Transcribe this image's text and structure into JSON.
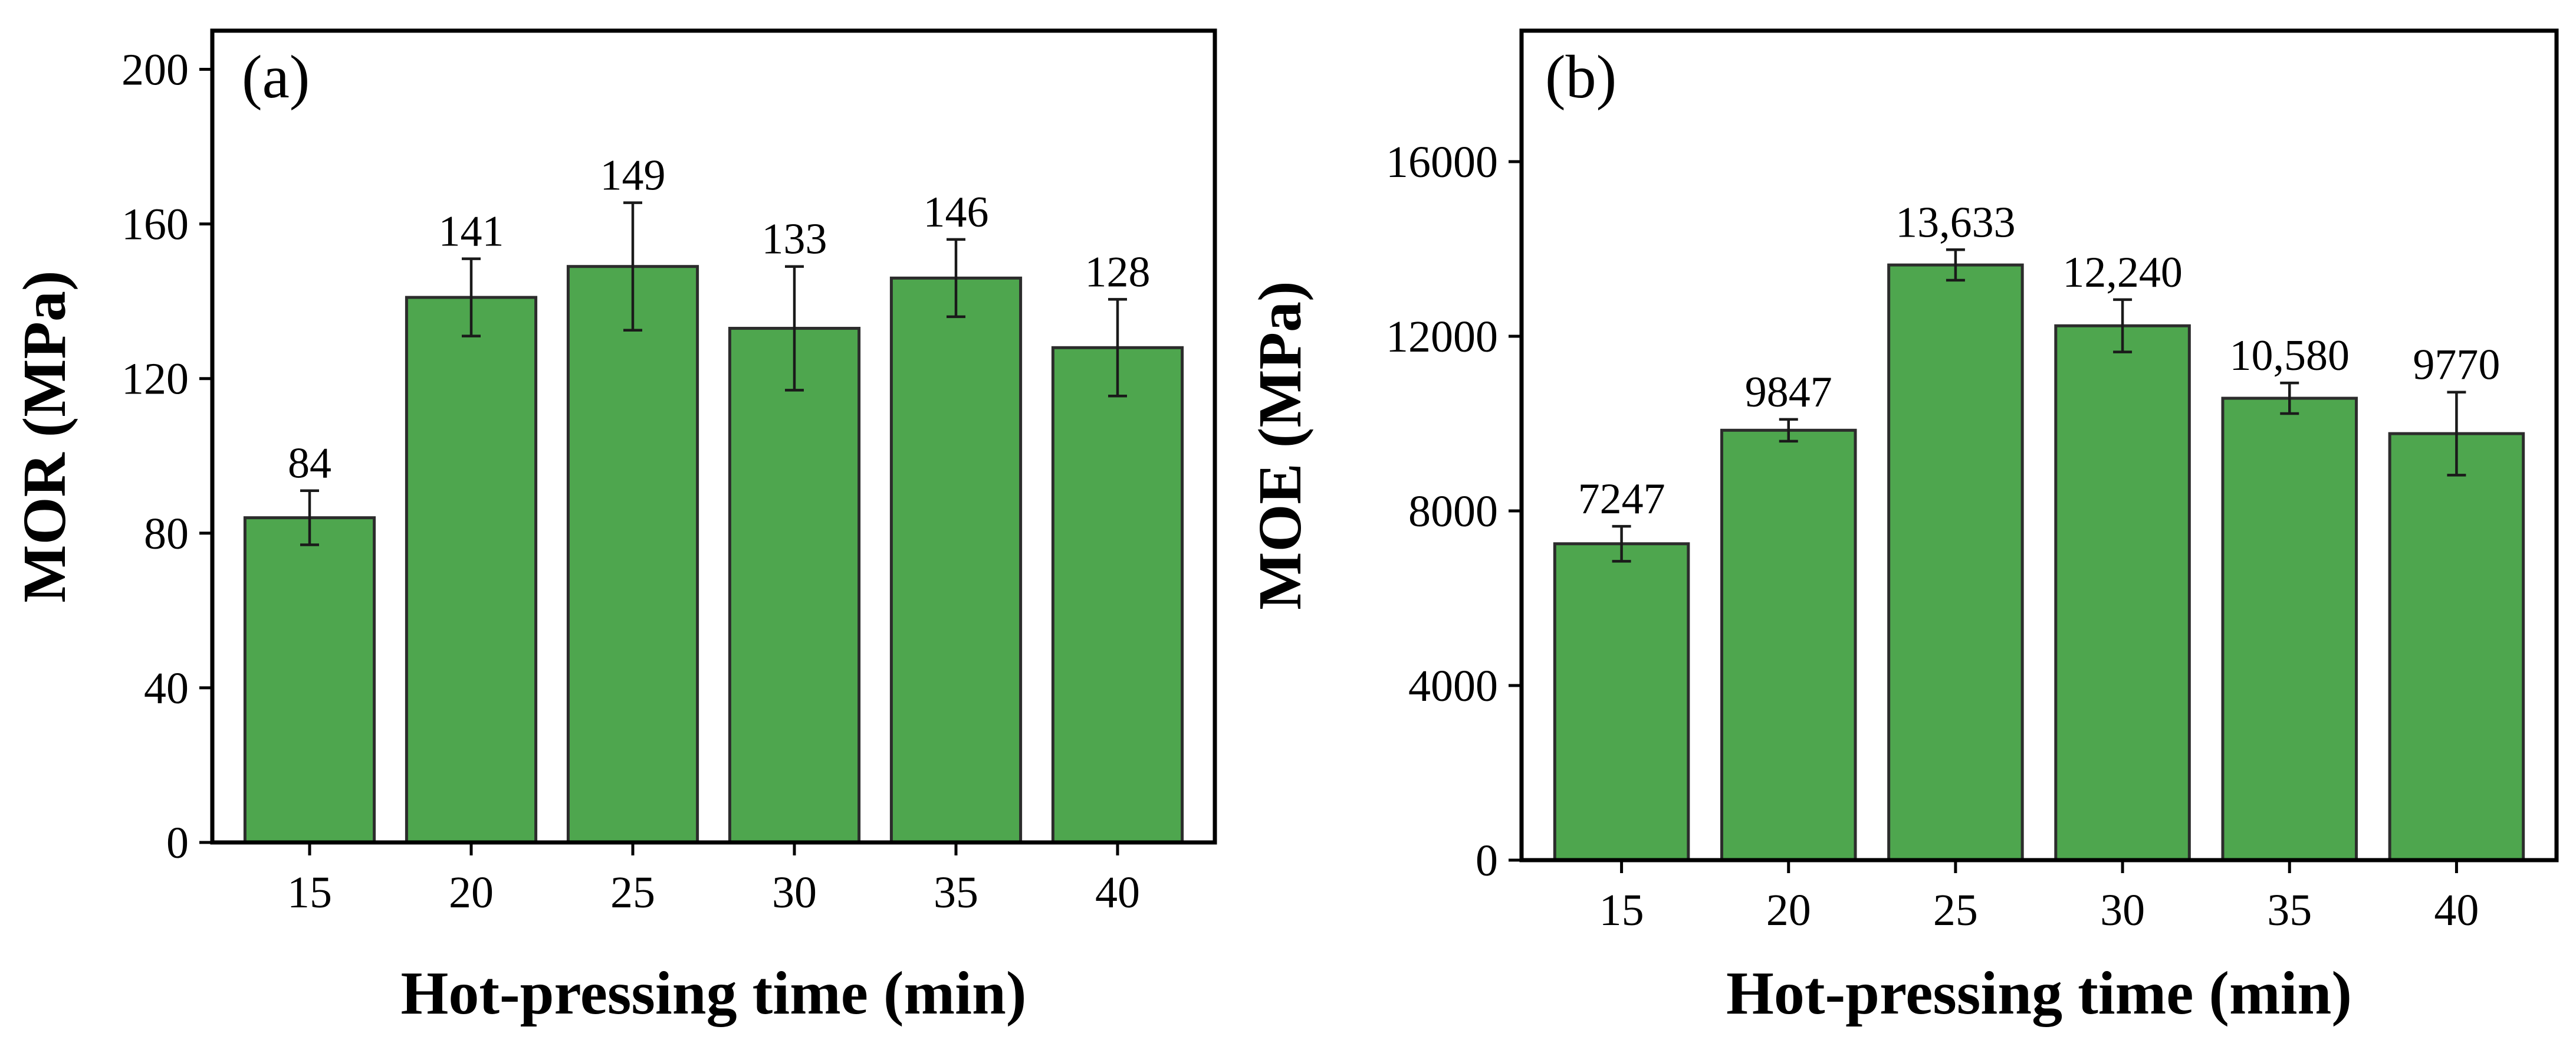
{
  "chart_data": [
    {
      "type": "bar",
      "panel_label": "(a)",
      "categories": [
        "15",
        "20",
        "25",
        "30",
        "35",
        "40"
      ],
      "values": [
        84,
        141,
        149,
        133,
        146,
        128
      ],
      "errors": [
        7,
        10,
        16.5,
        16,
        10,
        12.5
      ],
      "value_labels": [
        "84",
        "141",
        "149",
        "133",
        "146",
        "128"
      ],
      "xlabel": "Hot-pressing time (min)",
      "ylabel": "MOR (MPa)",
      "ylim": [
        0,
        210
      ],
      "yticks": [
        0,
        40,
        80,
        120,
        160,
        200
      ],
      "ytick_labels": [
        "0",
        "40",
        "80",
        "120",
        "160",
        "200"
      ],
      "bar_color": "#4ea64e",
      "bar_edge_color": "#2c2c2c"
    },
    {
      "type": "bar",
      "panel_label": "(b)",
      "categories": [
        "15",
        "20",
        "25",
        "30",
        "35",
        "40"
      ],
      "values": [
        7247,
        9847,
        13633,
        12240,
        10580,
        9770
      ],
      "errors": [
        400,
        250,
        350,
        600,
        350,
        950
      ],
      "value_labels": [
        "7247",
        "9847",
        "13,633",
        "12,240",
        "10,580",
        "9770"
      ],
      "xlabel": "Hot-pressing time (min)",
      "ylabel": "MOE (MPa)",
      "ylim": [
        0,
        19000
      ],
      "yticks": [
        0,
        4000,
        8000,
        12000,
        16000
      ],
      "ytick_labels": [
        "0",
        "4000",
        "8000",
        "12000",
        "16000"
      ],
      "bar_color": "#4ea64e",
      "bar_edge_color": "#2c2c2c"
    }
  ]
}
